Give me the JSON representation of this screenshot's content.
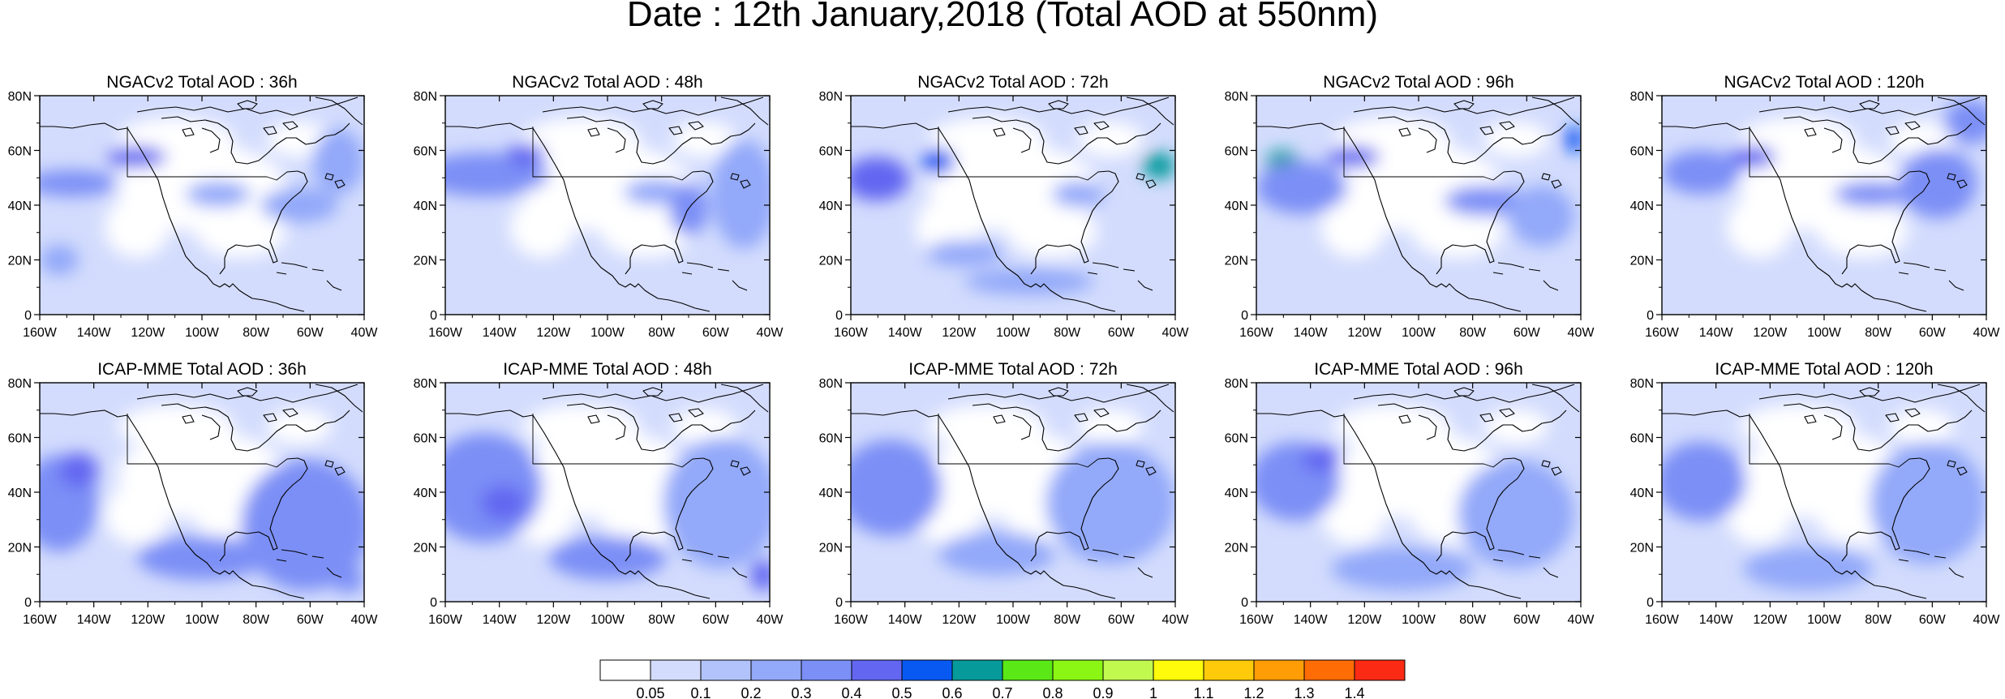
{
  "title": "Date : 12th January,2018 (Total AOD at 550nm)",
  "panels": [
    {
      "title": "NGACv2 Total AOD : 36h",
      "model": "NGACv2",
      "lead": "36h",
      "blobs": [
        [
          0.1,
          0.4,
          0.14,
          0.06,
          0.35
        ],
        [
          0.3,
          0.28,
          0.09,
          0.05,
          0.42
        ],
        [
          0.55,
          0.45,
          0.1,
          0.06,
          0.28
        ],
        [
          0.8,
          0.5,
          0.12,
          0.08,
          0.22
        ],
        [
          0.06,
          0.75,
          0.06,
          0.07,
          0.26
        ],
        [
          0.92,
          0.3,
          0.08,
          0.15,
          0.25
        ]
      ]
    },
    {
      "title": "NGACv2 Total AOD : 48h",
      "model": "NGACv2",
      "lead": "48h",
      "blobs": [
        [
          0.12,
          0.36,
          0.2,
          0.1,
          0.34
        ],
        [
          0.25,
          0.27,
          0.06,
          0.05,
          0.45
        ],
        [
          0.65,
          0.44,
          0.1,
          0.06,
          0.28
        ],
        [
          0.75,
          0.52,
          0.06,
          0.12,
          0.34
        ],
        [
          0.92,
          0.45,
          0.1,
          0.25,
          0.25
        ]
      ]
    },
    {
      "title": "NGACv2 Total AOD : 72h",
      "model": "NGACv2",
      "lead": "72h",
      "blobs": [
        [
          0.08,
          0.38,
          0.1,
          0.1,
          0.42
        ],
        [
          0.27,
          0.3,
          0.05,
          0.06,
          0.5
        ],
        [
          0.95,
          0.32,
          0.05,
          0.06,
          0.62
        ],
        [
          0.7,
          0.45,
          0.08,
          0.06,
          0.28
        ],
        [
          0.35,
          0.72,
          0.12,
          0.06,
          0.2
        ],
        [
          0.55,
          0.85,
          0.2,
          0.06,
          0.2
        ]
      ]
    },
    {
      "title": "NGACv2 Total AOD : 96h",
      "model": "NGACv2",
      "lead": "96h",
      "blobs": [
        [
          0.08,
          0.3,
          0.05,
          0.05,
          0.6
        ],
        [
          0.14,
          0.42,
          0.14,
          0.12,
          0.36
        ],
        [
          0.3,
          0.28,
          0.08,
          0.05,
          0.4
        ],
        [
          0.98,
          0.2,
          0.03,
          0.06,
          0.55
        ],
        [
          0.7,
          0.48,
          0.12,
          0.07,
          0.3
        ],
        [
          0.88,
          0.55,
          0.1,
          0.14,
          0.22
        ]
      ]
    },
    {
      "title": "NGACv2 Total AOD : 120h",
      "model": "NGACv2",
      "lead": "120h",
      "blobs": [
        [
          0.12,
          0.35,
          0.12,
          0.1,
          0.36
        ],
        [
          0.28,
          0.28,
          0.07,
          0.05,
          0.4
        ],
        [
          0.65,
          0.45,
          0.12,
          0.06,
          0.3
        ],
        [
          0.85,
          0.4,
          0.12,
          0.16,
          0.3
        ],
        [
          0.95,
          0.12,
          0.08,
          0.1,
          0.3
        ]
      ]
    },
    {
      "title": "ICAP-MME Total AOD : 36h",
      "model": "ICAP-MME",
      "lead": "36h",
      "blobs": [
        [
          0.06,
          0.55,
          0.12,
          0.22,
          0.38
        ],
        [
          0.12,
          0.4,
          0.06,
          0.08,
          0.45
        ],
        [
          0.5,
          0.8,
          0.2,
          0.1,
          0.3
        ],
        [
          0.82,
          0.65,
          0.2,
          0.3,
          0.3
        ],
        [
          0.95,
          0.9,
          0.05,
          0.06,
          0.36
        ]
      ]
    },
    {
      "title": "ICAP-MME Total AOD : 48h",
      "model": "ICAP-MME",
      "lead": "48h",
      "blobs": [
        [
          0.12,
          0.48,
          0.18,
          0.25,
          0.36
        ],
        [
          0.18,
          0.55,
          0.07,
          0.08,
          0.45
        ],
        [
          0.5,
          0.8,
          0.18,
          0.1,
          0.3
        ],
        [
          0.85,
          0.55,
          0.18,
          0.3,
          0.28
        ],
        [
          0.98,
          0.88,
          0.04,
          0.07,
          0.4
        ]
      ]
    },
    {
      "title": "ICAP-MME Total AOD : 72h",
      "model": "ICAP-MME",
      "lead": "72h",
      "blobs": [
        [
          0.12,
          0.48,
          0.16,
          0.22,
          0.38
        ],
        [
          0.45,
          0.78,
          0.18,
          0.1,
          0.26
        ],
        [
          0.8,
          0.55,
          0.2,
          0.28,
          0.25
        ]
      ]
    },
    {
      "title": "ICAP-MME Total AOD : 96h",
      "model": "ICAP-MME",
      "lead": "96h",
      "blobs": [
        [
          0.12,
          0.45,
          0.14,
          0.18,
          0.34
        ],
        [
          0.2,
          0.35,
          0.06,
          0.06,
          0.4
        ],
        [
          0.45,
          0.85,
          0.22,
          0.1,
          0.26
        ],
        [
          0.8,
          0.6,
          0.18,
          0.25,
          0.22
        ]
      ]
    },
    {
      "title": "ICAP-MME Total AOD : 120h",
      "model": "ICAP-MME",
      "lead": "120h",
      "blobs": [
        [
          0.06,
          0.52,
          0.06,
          0.06,
          0.48
        ],
        [
          0.12,
          0.45,
          0.14,
          0.18,
          0.32
        ],
        [
          0.45,
          0.85,
          0.2,
          0.1,
          0.24
        ],
        [
          0.82,
          0.55,
          0.18,
          0.28,
          0.22
        ]
      ]
    }
  ],
  "lat_ticks": [
    "80N",
    "60N",
    "40N",
    "20N",
    "0"
  ],
  "lon_ticks": [
    "160W",
    "140W",
    "120W",
    "100W",
    "80W",
    "60W",
    "40W"
  ],
  "colorbar": {
    "colors": [
      "#ffffff",
      "#d3dcfd",
      "#b2c3fb",
      "#93a9f9",
      "#7b8ff6",
      "#6266f1",
      "#0759f2",
      "#069a9b",
      "#5ae816",
      "#8bf513",
      "#c1f94f",
      "#fffb0a",
      "#feca0a",
      "#fe9d06",
      "#fe6c06",
      "#fb2a14"
    ],
    "labels": [
      "0.05",
      "0.1",
      "0.2",
      "0.3",
      "0.4",
      "0.5",
      "0.6",
      "0.7",
      "0.8",
      "0.9",
      "1",
      "1.1",
      "1.2",
      "1.3",
      "1.4"
    ]
  }
}
